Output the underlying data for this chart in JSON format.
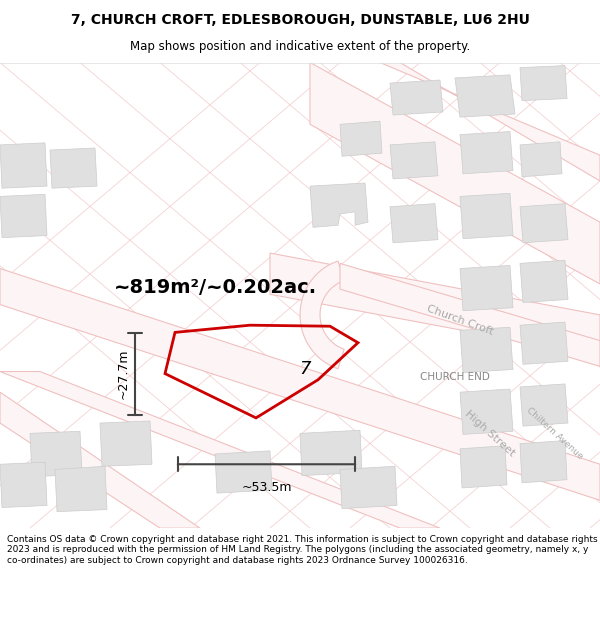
{
  "title_line1": "7, CHURCH CROFT, EDLESBOROUGH, DUNSTABLE, LU6 2HU",
  "title_line2": "Map shows position and indicative extent of the property.",
  "area_text": "~819m²/~0.202ac.",
  "width_label": "~53.5m",
  "height_label": "~27.7m",
  "plot_number": "7",
  "footer_text": "Contains OS data © Crown copyright and database right 2021. This information is subject to Crown copyright and database rights 2023 and is reproduced with the permission of HM Land Registry. The polygons (including the associated geometry, namely x, y co-ordinates) are subject to Crown copyright and database rights 2023 Ordnance Survey 100026316.",
  "map_bg": "#ffffff",
  "polygon_color": "#cc0000",
  "dim_color": "#444444",
  "road_outline_color": "#f0c0c0",
  "road_fill_color": "#fdf0f0",
  "building_fill": "#e0e0e0",
  "building_edge": "#cccccc",
  "street_label_color": "#aaaaaa",
  "church_end_color": "#888888",
  "church_croft_label": "Church Croft",
  "high_street_label": "High Street",
  "chiltern_ave_label": "Chiltern Avenue",
  "church_end_label": "CHURCH END",
  "title_fontsize": 10,
  "subtitle_fontsize": 8.5,
  "area_fontsize": 14,
  "dim_fontsize": 9,
  "plot_label_fontsize": 13,
  "footer_fontsize": 6.5
}
